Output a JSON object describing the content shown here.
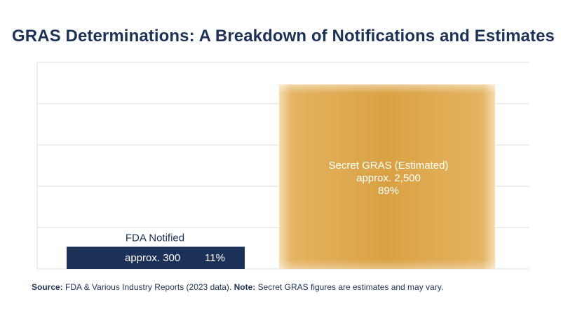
{
  "title": "GRAS Determinations: A Breakdown of Notifications and Estimates",
  "footer": {
    "source_label": "Source:",
    "source_text": "FDA & Various Industry Reports (2023 data).",
    "note_label": "Note:",
    "note_text": "Secret GRAS figures are estimates and may vary."
  },
  "chart_data": {
    "type": "bar",
    "title": "GRAS Determinations: A Breakdown of Notifications and Estimates",
    "xlabel": "",
    "ylabel": "",
    "ylim": [
      0,
      2800
    ],
    "grid": true,
    "categories": [
      "FDA Notified",
      "Secret GRAS (Estimated)"
    ],
    "values": [
      300,
      2500
    ],
    "value_labels": [
      "approx. 300",
      "approx. 2,500"
    ],
    "percent_labels": [
      "11%",
      "89%"
    ],
    "colors": [
      "#1b3157",
      "#dca345"
    ]
  }
}
